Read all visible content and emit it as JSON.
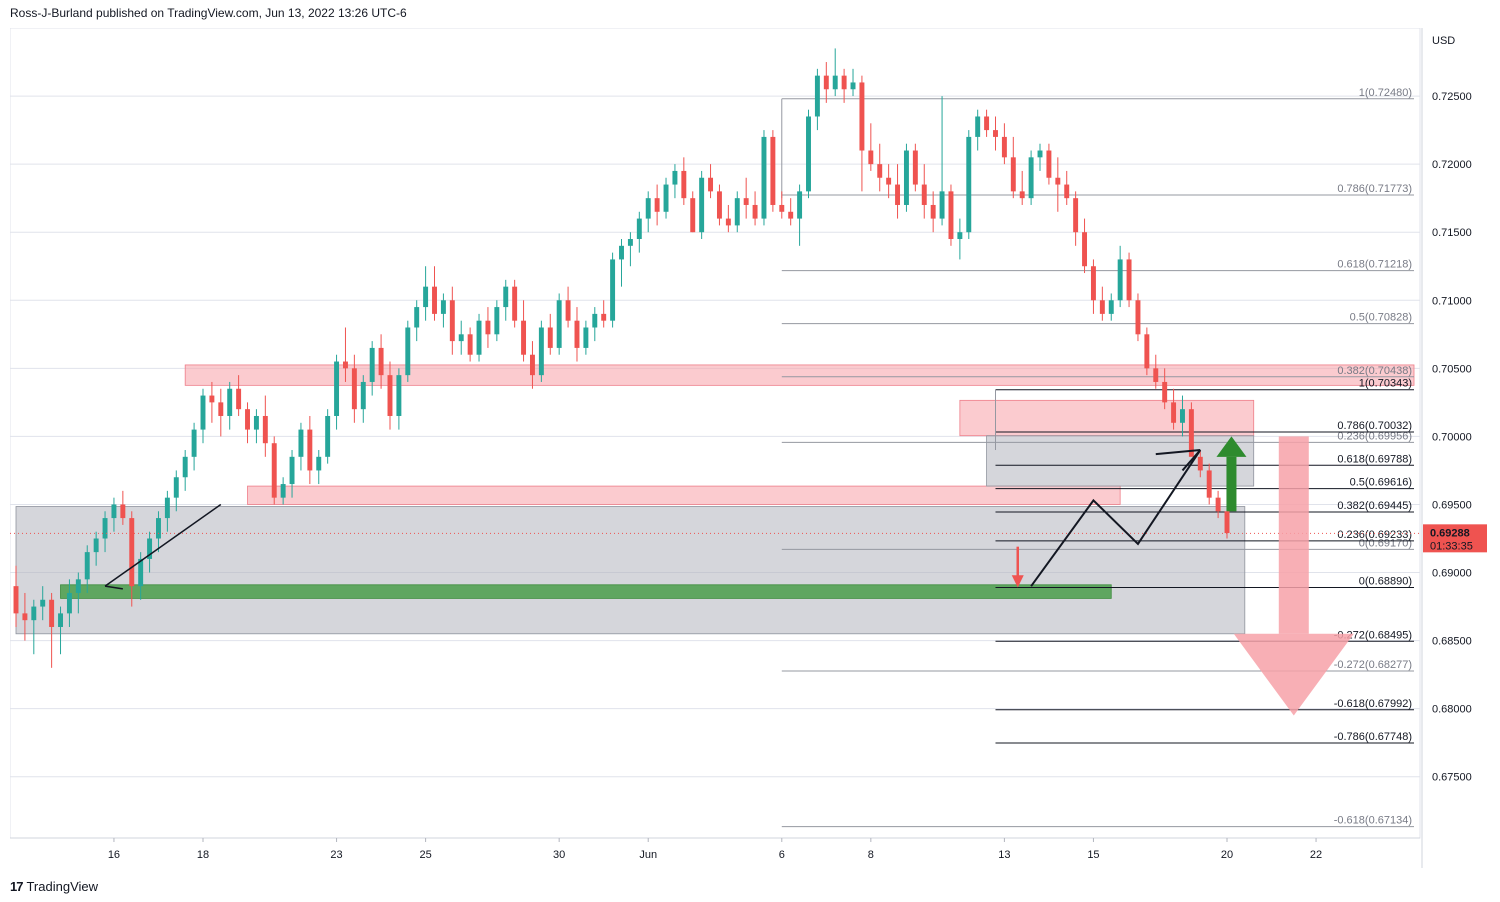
{
  "header": {
    "publisher_line": "Ross-J-Burland published on TradingView.com, Jun 13, 2022 13:26 UTC-6"
  },
  "footer": {
    "brand": "TradingView",
    "logo_glyph": "17"
  },
  "colors": {
    "up": "#26a69a",
    "down": "#ef5350",
    "zone_red": "#f7a1a8",
    "zone_gray": "#b2b5be",
    "zone_green": "#4a9e4a",
    "arrow_green": "#2e8b2e",
    "arrow_red": "#f7a1a8",
    "grid": "#e0e3eb"
  },
  "chart_data": {
    "type": "candlestick",
    "symbol_currency": "USD",
    "ylim": [
      0.6705,
      0.73
    ],
    "y_ticks": [
      "0.72500",
      "0.72000",
      "0.71500",
      "0.71000",
      "0.70500",
      "0.70000",
      "0.69500",
      "0.69000",
      "0.68500",
      "0.68000",
      "0.67500"
    ],
    "y_tick_values": [
      0.725,
      0.72,
      0.715,
      0.71,
      0.705,
      0.7,
      0.695,
      0.69,
      0.685,
      0.68,
      0.675
    ],
    "x_ticks": [
      {
        "label": "16",
        "index": 11
      },
      {
        "label": "18",
        "index": 21
      },
      {
        "label": "23",
        "index": 36
      },
      {
        "label": "25",
        "index": 46
      },
      {
        "label": "30",
        "index": 61
      },
      {
        "label": "Jun",
        "index": 71
      },
      {
        "label": "6",
        "index": 86
      },
      {
        "label": "8",
        "index": 96
      },
      {
        "label": "13",
        "index": 111
      },
      {
        "label": "15",
        "index": 121
      },
      {
        "label": "20",
        "index": 136
      },
      {
        "label": "22",
        "index": 146
      }
    ],
    "x_index_max": 157,
    "current_price": {
      "label": "0.69288",
      "timer": "01:33:35",
      "value": 0.69288
    },
    "candles": [
      [
        0.689,
        0.6905,
        0.686,
        0.687
      ],
      [
        0.687,
        0.6885,
        0.685,
        0.6865
      ],
      [
        0.6865,
        0.688,
        0.684,
        0.6875
      ],
      [
        0.6875,
        0.689,
        0.6865,
        0.688
      ],
      [
        0.688,
        0.6885,
        0.683,
        0.686
      ],
      [
        0.686,
        0.6875,
        0.684,
        0.687
      ],
      [
        0.687,
        0.6895,
        0.686,
        0.6885
      ],
      [
        0.6885,
        0.69,
        0.687,
        0.6895
      ],
      [
        0.6895,
        0.692,
        0.6885,
        0.6915
      ],
      [
        0.6915,
        0.693,
        0.6905,
        0.6925
      ],
      [
        0.6925,
        0.6945,
        0.6915,
        0.694
      ],
      [
        0.694,
        0.6955,
        0.693,
        0.695
      ],
      [
        0.695,
        0.696,
        0.6935,
        0.694
      ],
      [
        0.694,
        0.6945,
        0.6875,
        0.689
      ],
      [
        0.689,
        0.6915,
        0.688,
        0.691
      ],
      [
        0.691,
        0.693,
        0.69,
        0.6925
      ],
      [
        0.6925,
        0.6945,
        0.6915,
        0.694
      ],
      [
        0.694,
        0.696,
        0.693,
        0.6955
      ],
      [
        0.6955,
        0.6975,
        0.6945,
        0.697
      ],
      [
        0.697,
        0.699,
        0.696,
        0.6985
      ],
      [
        0.6985,
        0.701,
        0.6975,
        0.7005
      ],
      [
        0.7005,
        0.7035,
        0.6995,
        0.703
      ],
      [
        0.703,
        0.704,
        0.701,
        0.7025
      ],
      [
        0.7025,
        0.7035,
        0.7,
        0.7015
      ],
      [
        0.7015,
        0.704,
        0.7005,
        0.7035
      ],
      [
        0.7035,
        0.7045,
        0.7015,
        0.702
      ],
      [
        0.702,
        0.7025,
        0.6995,
        0.7005
      ],
      [
        0.7005,
        0.702,
        0.6995,
        0.7015
      ],
      [
        0.7015,
        0.703,
        0.6985,
        0.6995
      ],
      [
        0.6995,
        0.7,
        0.695,
        0.6955
      ],
      [
        0.6955,
        0.697,
        0.695,
        0.6965
      ],
      [
        0.6965,
        0.699,
        0.6955,
        0.6985
      ],
      [
        0.6985,
        0.701,
        0.6975,
        0.7005
      ],
      [
        0.7005,
        0.7015,
        0.6965,
        0.6975
      ],
      [
        0.6975,
        0.699,
        0.6965,
        0.6985
      ],
      [
        0.6985,
        0.702,
        0.698,
        0.7015
      ],
      [
        0.7015,
        0.706,
        0.7005,
        0.7055
      ],
      [
        0.7055,
        0.708,
        0.704,
        0.705
      ],
      [
        0.705,
        0.706,
        0.701,
        0.702
      ],
      [
        0.702,
        0.7045,
        0.701,
        0.704
      ],
      [
        0.704,
        0.707,
        0.703,
        0.7065
      ],
      [
        0.7065,
        0.7075,
        0.7035,
        0.7045
      ],
      [
        0.7045,
        0.7055,
        0.7005,
        0.7015
      ],
      [
        0.7015,
        0.705,
        0.7005,
        0.7045
      ],
      [
        0.7045,
        0.7085,
        0.704,
        0.708
      ],
      [
        0.708,
        0.71,
        0.707,
        0.7095
      ],
      [
        0.7095,
        0.7125,
        0.7085,
        0.711
      ],
      [
        0.711,
        0.7125,
        0.7085,
        0.709
      ],
      [
        0.709,
        0.7105,
        0.708,
        0.71
      ],
      [
        0.71,
        0.711,
        0.706,
        0.707
      ],
      [
        0.707,
        0.7085,
        0.706,
        0.7075
      ],
      [
        0.7075,
        0.708,
        0.7055,
        0.706
      ],
      [
        0.706,
        0.709,
        0.7055,
        0.7085
      ],
      [
        0.7085,
        0.7095,
        0.7065,
        0.7075
      ],
      [
        0.7075,
        0.71,
        0.707,
        0.7095
      ],
      [
        0.7095,
        0.7115,
        0.7085,
        0.711
      ],
      [
        0.711,
        0.7115,
        0.708,
        0.7085
      ],
      [
        0.7085,
        0.71,
        0.7055,
        0.706
      ],
      [
        0.706,
        0.707,
        0.7035,
        0.7045
      ],
      [
        0.7045,
        0.7085,
        0.704,
        0.708
      ],
      [
        0.708,
        0.709,
        0.706,
        0.7065
      ],
      [
        0.7065,
        0.7105,
        0.706,
        0.71
      ],
      [
        0.71,
        0.711,
        0.708,
        0.7085
      ],
      [
        0.7085,
        0.7095,
        0.7055,
        0.7065
      ],
      [
        0.7065,
        0.7085,
        0.706,
        0.708
      ],
      [
        0.708,
        0.7095,
        0.707,
        0.709
      ],
      [
        0.709,
        0.71,
        0.708,
        0.7085
      ],
      [
        0.7085,
        0.7135,
        0.708,
        0.713
      ],
      [
        0.713,
        0.7145,
        0.711,
        0.714
      ],
      [
        0.714,
        0.715,
        0.7125,
        0.7145
      ],
      [
        0.7145,
        0.7165,
        0.7135,
        0.716
      ],
      [
        0.716,
        0.718,
        0.715,
        0.7175
      ],
      [
        0.7175,
        0.7185,
        0.7155,
        0.7165
      ],
      [
        0.7165,
        0.719,
        0.716,
        0.7185
      ],
      [
        0.7185,
        0.72,
        0.7175,
        0.7195
      ],
      [
        0.7195,
        0.7205,
        0.717,
        0.7175
      ],
      [
        0.7175,
        0.718,
        0.715,
        0.715
      ],
      [
        0.715,
        0.7195,
        0.7145,
        0.719
      ],
      [
        0.719,
        0.72,
        0.7175,
        0.718
      ],
      [
        0.718,
        0.7185,
        0.7155,
        0.716
      ],
      [
        0.716,
        0.717,
        0.715,
        0.7155
      ],
      [
        0.7155,
        0.718,
        0.715,
        0.7175
      ],
      [
        0.7175,
        0.719,
        0.716,
        0.717
      ],
      [
        0.717,
        0.718,
        0.7155,
        0.716
      ],
      [
        0.716,
        0.7225,
        0.7155,
        0.722
      ],
      [
        0.722,
        0.7225,
        0.7165,
        0.717
      ],
      [
        0.717,
        0.718,
        0.716,
        0.7165
      ],
      [
        0.7165,
        0.7175,
        0.7155,
        0.716
      ],
      [
        0.716,
        0.7185,
        0.714,
        0.718
      ],
      [
        0.718,
        0.724,
        0.7175,
        0.7235
      ],
      [
        0.7235,
        0.727,
        0.7225,
        0.7265
      ],
      [
        0.7265,
        0.7275,
        0.7245,
        0.7255
      ],
      [
        0.7255,
        0.7285,
        0.725,
        0.7265
      ],
      [
        0.7265,
        0.727,
        0.7245,
        0.7255
      ],
      [
        0.7255,
        0.727,
        0.725,
        0.726
      ],
      [
        0.726,
        0.7265,
        0.718,
        0.721
      ],
      [
        0.721,
        0.723,
        0.7195,
        0.72
      ],
      [
        0.72,
        0.7215,
        0.718,
        0.719
      ],
      [
        0.719,
        0.72,
        0.7175,
        0.7185
      ],
      [
        0.7185,
        0.72,
        0.716,
        0.717
      ],
      [
        0.717,
        0.7215,
        0.7165,
        0.721
      ],
      [
        0.721,
        0.7215,
        0.718,
        0.7185
      ],
      [
        0.7185,
        0.72,
        0.716,
        0.717
      ],
      [
        0.717,
        0.718,
        0.715,
        0.716
      ],
      [
        0.716,
        0.725,
        0.7155,
        0.718
      ],
      [
        0.718,
        0.7185,
        0.714,
        0.7145
      ],
      [
        0.7145,
        0.716,
        0.713,
        0.715
      ],
      [
        0.715,
        0.7225,
        0.7145,
        0.722
      ],
      [
        0.722,
        0.724,
        0.721,
        0.7235
      ],
      [
        0.7235,
        0.724,
        0.722,
        0.7225
      ],
      [
        0.7225,
        0.7235,
        0.721,
        0.722
      ],
      [
        0.722,
        0.723,
        0.72,
        0.7205
      ],
      [
        0.7205,
        0.722,
        0.7175,
        0.718
      ],
      [
        0.718,
        0.7195,
        0.717,
        0.7175
      ],
      [
        0.7175,
        0.721,
        0.717,
        0.7205
      ],
      [
        0.7205,
        0.7215,
        0.7195,
        0.721
      ],
      [
        0.721,
        0.7215,
        0.7185,
        0.719
      ],
      [
        0.719,
        0.7205,
        0.7165,
        0.7185
      ],
      [
        0.7185,
        0.7195,
        0.717,
        0.7175
      ],
      [
        0.7175,
        0.718,
        0.714,
        0.715
      ],
      [
        0.715,
        0.716,
        0.712,
        0.7125
      ],
      [
        0.7125,
        0.713,
        0.709,
        0.71
      ],
      [
        0.71,
        0.711,
        0.7085,
        0.709
      ],
      [
        0.709,
        0.7105,
        0.7085,
        0.71
      ],
      [
        0.71,
        0.714,
        0.7095,
        0.713
      ],
      [
        0.713,
        0.7135,
        0.7095,
        0.71
      ],
      [
        0.71,
        0.7105,
        0.707,
        0.7075
      ],
      [
        0.7075,
        0.708,
        0.7045,
        0.705
      ],
      [
        0.705,
        0.706,
        0.7035,
        0.704
      ],
      [
        0.704,
        0.705,
        0.702,
        0.7025
      ],
      [
        0.7025,
        0.7035,
        0.7005,
        0.701
      ],
      [
        0.701,
        0.703,
        0.7,
        0.702
      ],
      [
        0.702,
        0.7025,
        0.699,
        0.6985
      ],
      [
        0.6985,
        0.699,
        0.697,
        0.6975
      ],
      [
        0.6975,
        0.698,
        0.695,
        0.6955
      ],
      [
        0.6955,
        0.696,
        0.694,
        0.6945
      ],
      [
        0.6945,
        0.695,
        0.6925,
        0.6929
      ]
    ],
    "fib_levels": [
      {
        "label": "1(0.72480)",
        "value": 0.7248,
        "x_from": 86,
        "style": "faded"
      },
      {
        "label": "0.786(0.71773)",
        "value": 0.71773,
        "x_from": 86,
        "style": "faded"
      },
      {
        "label": "0.618(0.71218)",
        "value": 0.71218,
        "x_from": 86,
        "style": "faded"
      },
      {
        "label": "0.5(0.70828)",
        "value": 0.70828,
        "x_from": 86,
        "style": "faded"
      },
      {
        "label": "0.382(0.70438)",
        "value": 0.70438,
        "x_from": 86,
        "style": "faded"
      },
      {
        "label": "0.236(0.69956)",
        "value": 0.69956,
        "x_from": 86,
        "style": "faded"
      },
      {
        "label": "0(0.69170)",
        "value": 0.6917,
        "x_from": 86,
        "style": "faded"
      },
      {
        "label": "-0.272(0.68277)",
        "value": 0.68277,
        "x_from": 86,
        "style": "faded"
      },
      {
        "label": "-0.618(0.67134)",
        "value": 0.67134,
        "x_from": 86,
        "style": "faded"
      },
      {
        "label": "1(0.70343)",
        "value": 0.70343,
        "x_from": 110,
        "style": "solid"
      },
      {
        "label": "0.786(0.70032)",
        "value": 0.70032,
        "x_from": 110,
        "style": "solid"
      },
      {
        "label": "0.618(0.69788)",
        "value": 0.69788,
        "x_from": 110,
        "style": "solid"
      },
      {
        "label": "0.5(0.69616)",
        "value": 0.69616,
        "x_from": 110,
        "style": "solid"
      },
      {
        "label": "0.382(0.69445)",
        "value": 0.69445,
        "x_from": 110,
        "style": "solid"
      },
      {
        "label": "0.236(0.69233)",
        "value": 0.69233,
        "x_from": 110,
        "style": "solid"
      },
      {
        "label": "0(0.68890)",
        "value": 0.6889,
        "x_from": 110,
        "style": "solid"
      },
      {
        "label": "-0.272(0.68495)",
        "value": 0.68495,
        "x_from": 110,
        "style": "solid"
      },
      {
        "label": "-0.618(0.67992)",
        "value": 0.67992,
        "x_from": 110,
        "style": "solid"
      },
      {
        "label": "-0.786(0.67748)",
        "value": 0.67748,
        "x_from": 110,
        "style": "solid"
      }
    ],
    "zones": [
      {
        "name": "red-resistance-upper",
        "color": "zone_red",
        "x1": 19,
        "x2": 157,
        "y1": 0.70525,
        "y2": 0.70375
      },
      {
        "name": "red-resistance-box",
        "color": "zone_red",
        "x1": 106,
        "x2": 139,
        "y1": 0.70265,
        "y2": 0.70005
      },
      {
        "name": "red-support-mid",
        "color": "zone_red",
        "x1": 26,
        "x2": 124,
        "y1": 0.69635,
        "y2": 0.695
      },
      {
        "name": "gray-box-left",
        "color": "zone_gray",
        "x1": 0,
        "x2": 138,
        "y1": 0.69485,
        "y2": 0.6855
      },
      {
        "name": "gray-box-right",
        "color": "zone_gray",
        "x1": 109,
        "x2": 139,
        "y1": 0.70005,
        "y2": 0.69635
      },
      {
        "name": "green-support",
        "color": "zone_green",
        "x1": 5,
        "x2": 123,
        "y1": 0.6891,
        "y2": 0.6881
      }
    ]
  }
}
